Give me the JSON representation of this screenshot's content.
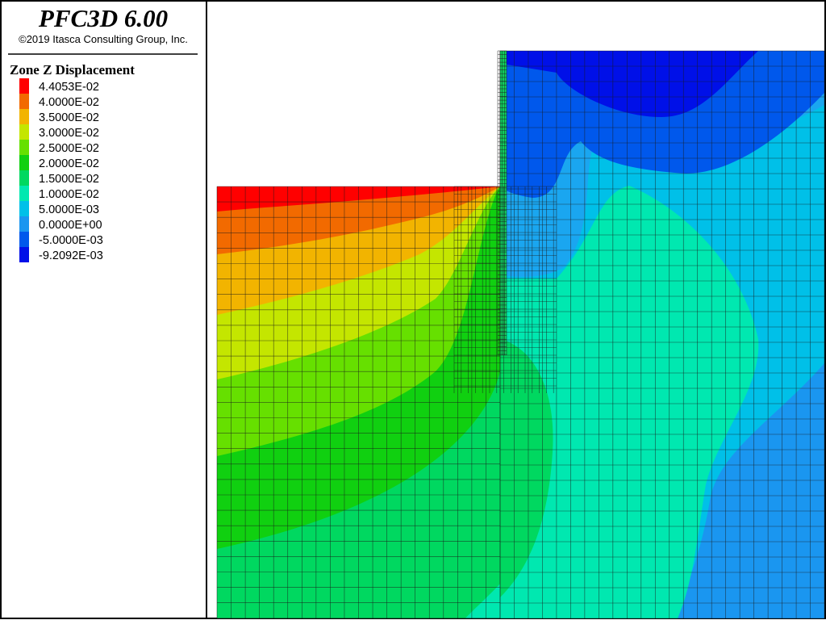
{
  "header": {
    "title": "PFC3D 6.00",
    "copyright": "©2019 Itasca Consulting Group, Inc."
  },
  "legend": {
    "title": "Zone Z Displacement",
    "items": [
      {
        "label": "4.4053E-02",
        "color": "#ff0000"
      },
      {
        "label": "4.0000E-02",
        "color": "#f26a00"
      },
      {
        "label": "3.5000E-02",
        "color": "#f2b400"
      },
      {
        "label": "3.0000E-02",
        "color": "#c4e600"
      },
      {
        "label": "2.5000E-02",
        "color": "#66e000"
      },
      {
        "label": "2.0000E-02",
        "color": "#10d010"
      },
      {
        "label": "1.5000E-02",
        "color": "#00d860"
      },
      {
        "label": "1.0000E-02",
        "color": "#00e8b0"
      },
      {
        "label": "5.0000E-03",
        "color": "#00c0e8"
      },
      {
        "label": "0.0000E+00",
        "color": "#1a96f0"
      },
      {
        "label": "-5.0000E-03",
        "color": "#0058ec"
      },
      {
        "label": "-9.2092E-03",
        "color": "#0010e8"
      }
    ]
  }
}
